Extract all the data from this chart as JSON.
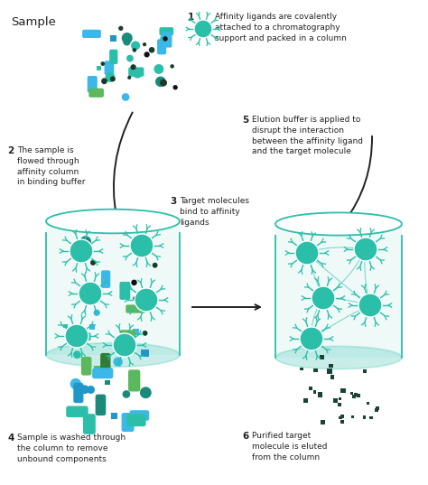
{
  "bg_color": "#ffffff",
  "teal": "#2bbfaa",
  "teal_border": "#2bbfaa",
  "blue_pill": "#3ab8e8",
  "blue_sq": "#2196c8",
  "green_pill": "#5cb85c",
  "green_dark": "#2e7d32",
  "dark_particle": "#1a3a2a",
  "dark_sq": "#1b4332",
  "text_color": "#222222",
  "step_font": 7.5,
  "step1_text": "Affinity ligands are covalently\nattached to a chromatography\nsupport and packed in a column",
  "step2_text": "The sample is\nflowed through\naffinity column\nin binding buffer",
  "step3_text": "Target molecules\nbind to affinity\nligands",
  "step4_text": "Sample is washed through\nthe column to remove\nunbound components",
  "step5_text": "Elution buffer is applied to\ndisrupt the interaction\nbetween the affinity ligand\nand the target molecule",
  "step6_text": "Purified target\nmolecule is eluted\nfrom the column",
  "sample_label": "Sample",
  "step_label": "1"
}
